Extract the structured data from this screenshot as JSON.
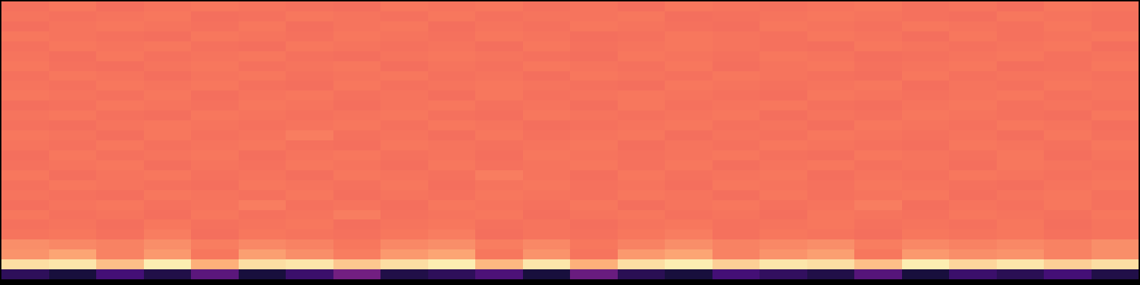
{
  "chart_data": {
    "type": "heatmap",
    "tick_labels": false,
    "color_range": [
      0,
      1
    ],
    "cells": [
      [
        0.15,
        0.1,
        0.2,
        0.12,
        0.25,
        0.1,
        0.18,
        0.3,
        0.12,
        0.15,
        0.22,
        0.1,
        0.28,
        0.14,
        0.1,
        0.2,
        0.16,
        0.12,
        0.24,
        0.1,
        0.18,
        0.14,
        0.2,
        0.12
      ],
      [
        0.96,
        0.97,
        0.92,
        0.98,
        0.9,
        0.96,
        0.97,
        0.93,
        0.96,
        0.98,
        0.91,
        0.97,
        0.9,
        0.96,
        0.98,
        0.94,
        0.97,
        0.96,
        0.92,
        0.98,
        0.95,
        0.97,
        0.94,
        0.96
      ],
      [
        0.85,
        0.88,
        0.82,
        0.86,
        0.8,
        0.87,
        0.84,
        0.81,
        0.86,
        0.88,
        0.8,
        0.85,
        0.79,
        0.86,
        0.88,
        0.82,
        0.85,
        0.87,
        0.8,
        0.86,
        0.84,
        0.85,
        0.82,
        0.84
      ],
      [
        0.84,
        0.83,
        0.82,
        0.84,
        0.81,
        0.83,
        0.82,
        0.8,
        0.83,
        0.84,
        0.81,
        0.83,
        0.8,
        0.82,
        0.84,
        0.82,
        0.83,
        0.84,
        0.81,
        0.83,
        0.82,
        0.83,
        0.82,
        0.84
      ],
      [
        0.79,
        0.8,
        0.78,
        0.81,
        0.77,
        0.8,
        0.79,
        0.78,
        0.8,
        0.81,
        0.77,
        0.79,
        0.78,
        0.8,
        0.81,
        0.78,
        0.8,
        0.79,
        0.77,
        0.8,
        0.79,
        0.8,
        0.78,
        0.79
      ],
      [
        0.78,
        0.79,
        0.77,
        0.8,
        0.78,
        0.79,
        0.8,
        0.77,
        0.79,
        0.8,
        0.78,
        0.79,
        0.77,
        0.79,
        0.8,
        0.78,
        0.79,
        0.8,
        0.78,
        0.79,
        0.78,
        0.8,
        0.77,
        0.79
      ],
      [
        0.8,
        0.78,
        0.79,
        0.77,
        0.8,
        0.78,
        0.79,
        0.81,
        0.78,
        0.79,
        0.8,
        0.77,
        0.79,
        0.8,
        0.78,
        0.79,
        0.77,
        0.8,
        0.79,
        0.78,
        0.8,
        0.79,
        0.78,
        0.8
      ],
      [
        0.77,
        0.79,
        0.8,
        0.78,
        0.79,
        0.81,
        0.78,
        0.79,
        0.77,
        0.8,
        0.79,
        0.78,
        0.8,
        0.77,
        0.79,
        0.8,
        0.78,
        0.79,
        0.81,
        0.77,
        0.79,
        0.78,
        0.8,
        0.78
      ],
      [
        0.79,
        0.78,
        0.77,
        0.8,
        0.79,
        0.78,
        0.8,
        0.77,
        0.79,
        0.78,
        0.8,
        0.79,
        0.78,
        0.8,
        0.79,
        0.77,
        0.8,
        0.78,
        0.79,
        0.8,
        0.77,
        0.79,
        0.8,
        0.78
      ],
      [
        0.78,
        0.8,
        0.79,
        0.78,
        0.77,
        0.8,
        0.79,
        0.78,
        0.8,
        0.77,
        0.79,
        0.8,
        0.78,
        0.79,
        0.77,
        0.8,
        0.79,
        0.78,
        0.8,
        0.79,
        0.78,
        0.77,
        0.79,
        0.8
      ],
      [
        0.8,
        0.77,
        0.79,
        0.8,
        0.78,
        0.79,
        0.77,
        0.8,
        0.79,
        0.78,
        0.81,
        0.79,
        0.77,
        0.8,
        0.78,
        0.79,
        0.8,
        0.77,
        0.79,
        0.78,
        0.8,
        0.79,
        0.78,
        0.79
      ],
      [
        0.78,
        0.79,
        0.8,
        0.77,
        0.79,
        0.78,
        0.8,
        0.79,
        0.77,
        0.8,
        0.78,
        0.79,
        0.8,
        0.78,
        0.8,
        0.77,
        0.79,
        0.8,
        0.78,
        0.79,
        0.77,
        0.8,
        0.79,
        0.78
      ],
      [
        0.77,
        0.8,
        0.78,
        0.79,
        0.8,
        0.77,
        0.79,
        0.8,
        0.78,
        0.79,
        0.77,
        0.8,
        0.79,
        0.78,
        0.79,
        0.8,
        0.78,
        0.77,
        0.8,
        0.79,
        0.78,
        0.8,
        0.77,
        0.79
      ],
      [
        0.79,
        0.78,
        0.8,
        0.78,
        0.79,
        0.8,
        0.78,
        0.77,
        0.8,
        0.79,
        0.78,
        0.79,
        0.8,
        0.77,
        0.79,
        0.78,
        0.8,
        0.79,
        0.78,
        0.77,
        0.8,
        0.79,
        0.78,
        0.8
      ],
      [
        0.8,
        0.79,
        0.77,
        0.8,
        0.78,
        0.79,
        0.81,
        0.78,
        0.79,
        0.77,
        0.8,
        0.78,
        0.79,
        0.8,
        0.77,
        0.79,
        0.78,
        0.8,
        0.79,
        0.78,
        0.79,
        0.77,
        0.8,
        0.78
      ],
      [
        0.78,
        0.77,
        0.79,
        0.8,
        0.79,
        0.78,
        0.79,
        0.8,
        0.78,
        0.8,
        0.79,
        0.77,
        0.78,
        0.79,
        0.8,
        0.78,
        0.79,
        0.77,
        0.8,
        0.79,
        0.78,
        0.8,
        0.79,
        0.77
      ],
      [
        0.79,
        0.8,
        0.78,
        0.77,
        0.8,
        0.79,
        0.78,
        0.79,
        0.8,
        0.78,
        0.77,
        0.8,
        0.79,
        0.78,
        0.79,
        0.8,
        0.77,
        0.79,
        0.78,
        0.8,
        0.79,
        0.78,
        0.77,
        0.8
      ],
      [
        0.77,
        0.78,
        0.8,
        0.79,
        0.78,
        0.8,
        0.79,
        0.77,
        0.79,
        0.8,
        0.78,
        0.79,
        0.77,
        0.8,
        0.78,
        0.79,
        0.8,
        0.78,
        0.77,
        0.79,
        0.8,
        0.78,
        0.79,
        0.78
      ],
      [
        0.8,
        0.79,
        0.78,
        0.8,
        0.77,
        0.79,
        0.8,
        0.78,
        0.79,
        0.77,
        0.8,
        0.78,
        0.79,
        0.8,
        0.79,
        0.78,
        0.77,
        0.8,
        0.79,
        0.78,
        0.79,
        0.8,
        0.78,
        0.79
      ],
      [
        0.79,
        0.78,
        0.8,
        0.79,
        0.8,
        0.78,
        0.77,
        0.8,
        0.78,
        0.79,
        0.8,
        0.79,
        0.78,
        0.77,
        0.8,
        0.79,
        0.78,
        0.79,
        0.8,
        0.77,
        0.79,
        0.78,
        0.8,
        0.79
      ],
      [
        0.78,
        0.8,
        0.79,
        0.77,
        0.79,
        0.8,
        0.78,
        0.79,
        0.8,
        0.78,
        0.79,
        0.77,
        0.8,
        0.79,
        0.78,
        0.8,
        0.79,
        0.78,
        0.77,
        0.8,
        0.78,
        0.79,
        0.79,
        0.78
      ],
      [
        0.8,
        0.78,
        0.77,
        0.79,
        0.8,
        0.78,
        0.79,
        0.8,
        0.77,
        0.79,
        0.78,
        0.8,
        0.79,
        0.78,
        0.8,
        0.77,
        0.79,
        0.8,
        0.78,
        0.79,
        0.8,
        0.77,
        0.78,
        0.8
      ],
      [
        0.79,
        0.77,
        0.8,
        0.78,
        0.79,
        0.8,
        0.78,
        0.77,
        0.79,
        0.8,
        0.79,
        0.78,
        0.77,
        0.8,
        0.79,
        0.78,
        0.8,
        0.79,
        0.77,
        0.78,
        0.79,
        0.8,
        0.78,
        0.79
      ],
      [
        0.78,
        0.8,
        0.79,
        0.8,
        0.78,
        0.77,
        0.8,
        0.79,
        0.78,
        0.79,
        0.77,
        0.8,
        0.78,
        0.79,
        0.8,
        0.79,
        0.78,
        0.77,
        0.8,
        0.79,
        0.78,
        0.79,
        0.8,
        0.77
      ],
      [
        0.8,
        0.79,
        0.78,
        0.77,
        0.8,
        0.79,
        0.78,
        0.8,
        0.79,
        0.78,
        0.8,
        0.79,
        0.77,
        0.78,
        0.8,
        0.79,
        0.78,
        0.8,
        0.79,
        0.77,
        0.8,
        0.78,
        0.79,
        0.8
      ],
      [
        0.77,
        0.79,
        0.8,
        0.79,
        0.78,
        0.8,
        0.77,
        0.79,
        0.8,
        0.77,
        0.79,
        0.78,
        0.8,
        0.79,
        0.78,
        0.77,
        0.8,
        0.79,
        0.78,
        0.8,
        0.79,
        0.78,
        0.8,
        0.78
      ],
      [
        0.79,
        0.78,
        0.79,
        0.8,
        0.77,
        0.78,
        0.8,
        0.79,
        0.78,
        0.8,
        0.78,
        0.79,
        0.79,
        0.8,
        0.77,
        0.78,
        0.79,
        0.8,
        0.79,
        0.78,
        0.77,
        0.8,
        0.79,
        0.78
      ],
      [
        0.78,
        0.8,
        0.77,
        0.79,
        0.8,
        0.79,
        0.78,
        0.77,
        0.8,
        0.79,
        0.8,
        0.78,
        0.79,
        0.77,
        0.8,
        0.79,
        0.78,
        0.79,
        0.8,
        0.78,
        0.79,
        0.77,
        0.8,
        0.79
      ]
    ]
  }
}
